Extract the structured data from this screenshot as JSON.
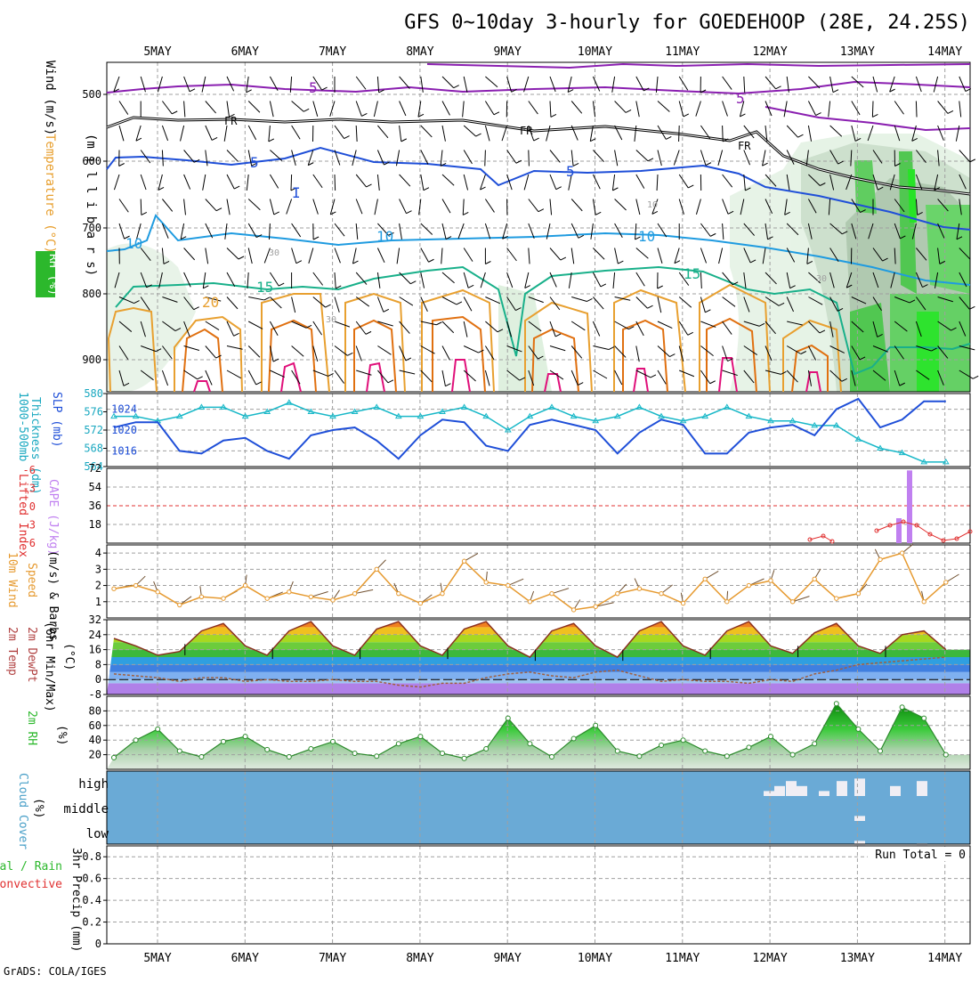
{
  "title": "GFS 0~10day 3-hourly for GOEDEHOOP (28E, 24.25S)",
  "credit": "GrADS: COLA/IGES",
  "dates": [
    "5MAY",
    "6MAY",
    "7MAY",
    "8MAY",
    "9MAY",
    "10MAY",
    "11MAY",
    "12MAY",
    "13MAY",
    "14MAY"
  ],
  "colors": {
    "grid": "#a0a0a0",
    "t_purple": "#8a1fb0",
    "t_blue": "#1f4fd8",
    "t_lblue": "#1f9be0",
    "t_teal": "#19b08a",
    "t_orange": "#e8a030",
    "t_dorange": "#e07010",
    "t_magenta": "#e0107a",
    "rh_green": "#2cb82c",
    "cape": "#c080f0",
    "li": "#e03030",
    "wind10m": "#e69a30",
    "cloud": "#6aaad6",
    "cloud_gap": "#f0eef4"
  },
  "panel_upper": {
    "ylabel_wind": "Wind (m/s)",
    "ylabel_temp": "Temperature (°C)",
    "ylabel_rh": "RH (%)",
    "ylabel_p": "(m i l l i b a r s)",
    "yticks": [
      "500",
      "600",
      "700",
      "800",
      "900"
    ],
    "contour_labels": [
      "5",
      "5",
      "FR",
      "FR",
      "FR",
      "5",
      "5",
      "10",
      "10",
      "10",
      "10",
      "15",
      "15",
      "20",
      "30",
      "30",
      "30",
      "10"
    ]
  },
  "panel_thick": {
    "ylabel1": "1000-500mb",
    "ylabel2": "Thickness (dm)",
    "ylabel3": "SLP (mb)",
    "left_ticks": [
      "580",
      "576",
      "572",
      "568",
      "564"
    ],
    "right_ticks": [
      "1024",
      "1020",
      "1016"
    ]
  },
  "panel_cape": {
    "ylabel_li": "Lifted Index",
    "ylabel_cape": "CAPE (J/kg)",
    "left_ticks": [
      "-6",
      "-3",
      "0",
      "3",
      "6"
    ],
    "right_ticks": [
      "72",
      "54",
      "36",
      "18"
    ]
  },
  "panel_wind10": {
    "ylabel1": "10m Wind",
    "ylabel2": "Speed",
    "ylabel3": "(m/s) & Barbs",
    "yticks": [
      "4",
      "3",
      "2",
      "1"
    ]
  },
  "panel_temp": {
    "ylabel1": "2m Temp",
    "ylabel2": "2m DewPt",
    "ylabel3": "(6hr Min/Max)",
    "ylabel4": "(°C)",
    "yticks": [
      "32",
      "24",
      "16",
      "8",
      "0",
      "-8"
    ]
  },
  "panel_rh": {
    "ylabel1": "2m RH",
    "ylabel2": "(%)",
    "yticks": [
      "80",
      "60",
      "40",
      "20"
    ]
  },
  "panel_cloud": {
    "ylabel1": "Cloud Cover",
    "ylabel2": "(%)",
    "levels": [
      "high",
      "middle",
      "low"
    ]
  },
  "panel_precip": {
    "ylabel1": "Total / Rain",
    "ylabel2": "Convective",
    "ylabel3": "3hr Precip (mm)",
    "yticks": [
      "0.8",
      "0.6",
      "0.4",
      "0.2",
      "0"
    ],
    "run_total": "Run Total = 0"
  },
  "chart_data": [
    {
      "type": "line",
      "title": "1000-500mb Thickness (dm) and SLP (mb)",
      "x": [
        "4MAY18",
        "5MAY00",
        "5MAY06",
        "5MAY12",
        "5MAY18",
        "6MAY00",
        "6MAY06",
        "6MAY12",
        "6MAY18",
        "7MAY00",
        "7MAY06",
        "7MAY12",
        "7MAY18",
        "8MAY00",
        "8MAY06",
        "8MAY12",
        "8MAY18",
        "9MAY00",
        "9MAY06",
        "9MAY12",
        "9MAY18",
        "10MAY00",
        "10MAY06",
        "10MAY12",
        "10MAY18",
        "11MAY00",
        "11MAY06",
        "11MAY12",
        "11MAY18",
        "12MAY00",
        "12MAY06",
        "12MAY12",
        "12MAY18",
        "13MAY00",
        "13MAY06",
        "13MAY12",
        "13MAY18",
        "14MAY00",
        "14MAY06"
      ],
      "series": [
        {
          "name": "Thickness (dm)",
          "axis": "left",
          "values": [
            575,
            575,
            574,
            575,
            577,
            577,
            575,
            576,
            578,
            576,
            575,
            576,
            577,
            575,
            575,
            576,
            577,
            575,
            572,
            575,
            577,
            575,
            574,
            575,
            577,
            575,
            574,
            575,
            577,
            575,
            574,
            574,
            573,
            573,
            570,
            568,
            567,
            565,
            565
          ]
        },
        {
          "name": "SLP (mb)",
          "axis": "right",
          "values": [
            1020.5,
            1021.5,
            1021.5,
            1016,
            1015.5,
            1018,
            1018.5,
            1016,
            1014.5,
            1019,
            1020,
            1020.5,
            1018,
            1014.5,
            1019,
            1022,
            1021.5,
            1017,
            1016,
            1021,
            1022,
            1021,
            1020,
            1015.5,
            1019.5,
            1022,
            1021,
            1015.5,
            1015.5,
            1019.5,
            1020.5,
            1021,
            1019,
            1024,
            1026,
            1020.5,
            1022,
            1025.5,
            1025.5
          ]
        }
      ],
      "ylim_left": [
        564,
        580
      ],
      "ylim_right": [
        1013,
        1027
      ]
    },
    {
      "type": "bar",
      "title": "Lifted Index / CAPE (J/kg)",
      "x": [
        "13MAY12",
        "13MAY18"
      ],
      "series": [
        {
          "name": "CAPE (J/kg)",
          "values": [
            24,
            70
          ]
        }
      ],
      "ylim": [
        0,
        72
      ]
    },
    {
      "type": "line",
      "title": "10m Wind Speed (m/s)",
      "x": [
        "4MAY18",
        "5MAY00",
        "5MAY06",
        "5MAY12",
        "5MAY18",
        "6MAY00",
        "6MAY06",
        "6MAY12",
        "6MAY18",
        "7MAY00",
        "7MAY06",
        "7MAY12",
        "7MAY18",
        "8MAY00",
        "8MAY06",
        "8MAY12",
        "8MAY18",
        "9MAY00",
        "9MAY06",
        "9MAY12",
        "9MAY18",
        "10MAY00",
        "10MAY06",
        "10MAY12",
        "10MAY18",
        "11MAY00",
        "11MAY06",
        "11MAY12",
        "11MAY18",
        "12MAY00",
        "12MAY06",
        "12MAY12",
        "12MAY18",
        "13MAY00",
        "13MAY06",
        "13MAY12",
        "13MAY18",
        "14MAY00",
        "14MAY06"
      ],
      "series": [
        {
          "name": "Speed",
          "values": [
            1.8,
            2.0,
            1.6,
            0.8,
            1.3,
            1.2,
            2.0,
            1.2,
            1.6,
            1.3,
            1.1,
            1.5,
            3.0,
            1.5,
            0.9,
            1.5,
            3.5,
            2.2,
            2.0,
            1.0,
            1.5,
            0.5,
            0.7,
            1.5,
            1.8,
            1.5,
            0.9,
            2.4,
            1.0,
            2.0,
            2.3,
            1.0,
            2.4,
            1.2,
            1.5,
            3.6,
            4.0,
            1.0,
            2.2
          ]
        }
      ],
      "ylim": [
        0,
        4.5
      ]
    },
    {
      "type": "area",
      "title": "2m Temp / 2m DewPt (°C)",
      "x": [
        "4MAY18",
        "5MAY00",
        "5MAY06",
        "5MAY12",
        "5MAY18",
        "6MAY00",
        "6MAY06",
        "6MAY12",
        "6MAY18",
        "7MAY00",
        "7MAY06",
        "7MAY12",
        "7MAY18",
        "8MAY00",
        "8MAY06",
        "8MAY12",
        "8MAY18",
        "9MAY00",
        "9MAY06",
        "9MAY12",
        "9MAY18",
        "10MAY00",
        "10MAY06",
        "10MAY12",
        "10MAY18",
        "11MAY00",
        "11MAY06",
        "11MAY12",
        "11MAY18",
        "12MAY00",
        "12MAY06",
        "12MAY12",
        "12MAY18",
        "13MAY00",
        "13MAY06",
        "13MAY12",
        "13MAY18",
        "14MAY00",
        "14MAY06"
      ],
      "series": [
        {
          "name": "2m Temp",
          "values": [
            22,
            18,
            13,
            15,
            26,
            30,
            18,
            13,
            26,
            31,
            18,
            13,
            27,
            31,
            18,
            13,
            27,
            31,
            18,
            12,
            26,
            30,
            18,
            12,
            26,
            31,
            18,
            13,
            26,
            31,
            18,
            14,
            25,
            30,
            18,
            14,
            24,
            26,
            16
          ]
        },
        {
          "name": "2m DewPt",
          "values": [
            3,
            2,
            1,
            -1,
            1,
            1,
            -1,
            0,
            -1,
            -1,
            0,
            -1,
            -1,
            -3,
            -4,
            -2,
            -2,
            1,
            3,
            4,
            2,
            1,
            4,
            5,
            2,
            -1,
            0,
            -1,
            -1,
            -2,
            0,
            -1,
            3,
            5,
            8,
            9,
            10,
            11,
            12
          ]
        }
      ],
      "ylim": [
        -8,
        32
      ]
    },
    {
      "type": "area",
      "title": "2m RH (%)",
      "x": [
        "4MAY18",
        "5MAY00",
        "5MAY06",
        "5MAY12",
        "5MAY18",
        "6MAY00",
        "6MAY06",
        "6MAY12",
        "6MAY18",
        "7MAY00",
        "7MAY06",
        "7MAY12",
        "7MAY18",
        "8MAY00",
        "8MAY06",
        "8MAY12",
        "8MAY18",
        "9MAY00",
        "9MAY06",
        "9MAY12",
        "9MAY18",
        "10MAY00",
        "10MAY06",
        "10MAY12",
        "10MAY18",
        "11MAY00",
        "11MAY06",
        "11MAY12",
        "11MAY18",
        "12MAY00",
        "12MAY06",
        "12MAY12",
        "12MAY18",
        "13MAY00",
        "13MAY06",
        "13MAY12",
        "13MAY18",
        "14MAY00",
        "14MAY06"
      ],
      "series": [
        {
          "name": "2m RH",
          "values": [
            16,
            40,
            55,
            25,
            17,
            38,
            45,
            27,
            17,
            28,
            38,
            22,
            18,
            35,
            45,
            22,
            15,
            28,
            70,
            35,
            17,
            42,
            60,
            25,
            18,
            33,
            40,
            25,
            18,
            30,
            45,
            20,
            35,
            90,
            55,
            25,
            85,
            70,
            20
          ]
        }
      ],
      "ylim": [
        0,
        100
      ]
    },
    {
      "type": "bar",
      "title": "Cloud Cover (%)",
      "x": [
        "12MAY00",
        "12MAY06",
        "12MAY12",
        "12MAY18",
        "13MAY00",
        "13MAY06",
        "13MAY12",
        "13MAY18",
        "14MAY00"
      ],
      "series": [
        {
          "name": "high",
          "values": [
            20,
            40,
            60,
            40,
            20,
            60,
            70,
            40,
            60
          ]
        },
        {
          "name": "middle",
          "values": [
            0,
            0,
            0,
            0,
            0,
            0,
            20,
            0,
            0
          ]
        },
        {
          "name": "low",
          "values": [
            0,
            0,
            0,
            0,
            0,
            0,
            20,
            0,
            10
          ]
        }
      ],
      "ylim": [
        0,
        100
      ]
    },
    {
      "type": "bar",
      "title": "3hr Precip (mm)",
      "x": [
        "4MAY18",
        "14MAY06"
      ],
      "series": [
        {
          "name": "Total / Rain",
          "values": [
            0,
            0
          ]
        }
      ],
      "ylim": [
        0,
        0.9
      ]
    }
  ]
}
